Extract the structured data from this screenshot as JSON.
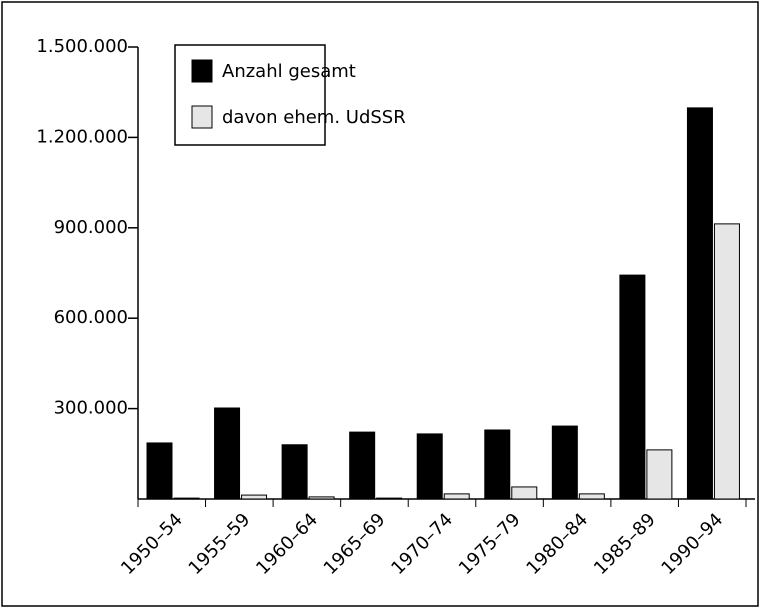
{
  "chart_data": {
    "type": "bar",
    "categories": [
      "1950–54",
      "1955–59",
      "1960–64",
      "1965–69",
      "1970–74",
      "1975–79",
      "1980–84",
      "1985–89",
      "1990–94"
    ],
    "series": [
      {
        "name": "Anzahl gesamt",
        "color": "#000000",
        "values": [
          186000,
          302000,
          180000,
          222000,
          216000,
          229000,
          242000,
          743000,
          1298000
        ]
      },
      {
        "name": "davon ehem. UdSSR",
        "color": "#e6e6e6",
        "values": [
          3000,
          13000,
          7000,
          3000,
          17000,
          40000,
          17000,
          163000,
          913000
        ]
      }
    ],
    "ylim": [
      0,
      1500000
    ],
    "yticks": [
      {
        "value": 300000,
        "label": "300.000"
      },
      {
        "value": 600000,
        "label": "600.000"
      },
      {
        "value": 900000,
        "label": "900.000"
      },
      {
        "value": 1200000,
        "label": "1.200.000"
      },
      {
        "value": 1500000,
        "label": "1.500.000"
      }
    ],
    "legend": "upper left"
  }
}
